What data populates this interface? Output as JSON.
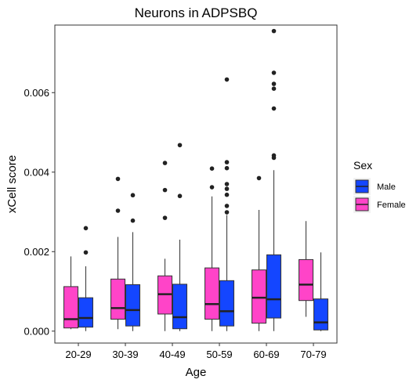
{
  "chart_data": {
    "type": "box",
    "title": "Neurons in ADPSBQ",
    "xlabel": "Age",
    "ylabel": "xCell score",
    "categories": [
      "20-29",
      "30-39",
      "40-49",
      "50-59",
      "60-69",
      "70-79"
    ],
    "y_ticks": [
      {
        "value": 0.0,
        "label": "0.000"
      },
      {
        "value": 0.002,
        "label": "0.002"
      },
      {
        "value": 0.004,
        "label": "0.004"
      },
      {
        "value": 0.006,
        "label": "0.006"
      }
    ],
    "ylim": [
      -0.0003,
      0.0077
    ],
    "grid": false,
    "legend": {
      "title": "Sex",
      "position": "right",
      "entries": [
        {
          "key": "Male",
          "label": "Male",
          "color": "#1446FF"
        },
        {
          "key": "Female",
          "label": "Female",
          "color": "#FF44C8"
        }
      ]
    },
    "series": [
      {
        "key": "Female",
        "color": "#FF44C8",
        "boxes": [
          {
            "whisker_low": 5e-05,
            "q1": 8e-05,
            "median": 0.0003,
            "q3": 0.00112,
            "whisker_high": 0.00188,
            "outliers": []
          },
          {
            "whisker_low": 5e-05,
            "q1": 0.0003,
            "median": 0.00058,
            "q3": 0.00131,
            "whisker_high": 0.00237,
            "outliers": [
              0.00303,
              0.00383
            ]
          },
          {
            "whisker_low": 0.0,
            "q1": 0.00043,
            "median": 0.00093,
            "q3": 0.00139,
            "whisker_high": 0.00182,
            "outliers": [
              0.00285,
              0.00355,
              0.00423
            ]
          },
          {
            "whisker_low": 0.0,
            "q1": 0.0003,
            "median": 0.00068,
            "q3": 0.00159,
            "whisker_high": 0.00339,
            "outliers": [
              0.00362,
              0.00409
            ]
          },
          {
            "whisker_low": 0.0,
            "q1": 0.0002,
            "median": 0.00084,
            "q3": 0.00154,
            "whisker_high": 0.00305,
            "outliers": [
              0.00385
            ]
          },
          {
            "whisker_low": 0.00036,
            "q1": 0.00077,
            "median": 0.00117,
            "q3": 0.0018,
            "whisker_high": 0.00277,
            "outliers": []
          }
        ]
      },
      {
        "key": "Male",
        "color": "#1446FF",
        "boxes": [
          {
            "whisker_low": 0.0,
            "q1": 0.0001,
            "median": 0.00033,
            "q3": 0.00084,
            "whisker_high": 0.00163,
            "outliers": [
              0.00198,
              0.00259
            ]
          },
          {
            "whisker_low": 0.0,
            "q1": 0.00013,
            "median": 0.00053,
            "q3": 0.00117,
            "whisker_high": 0.00249,
            "outliers": [
              0.00278,
              0.00342
            ]
          },
          {
            "whisker_low": 0.0,
            "q1": 6e-05,
            "median": 0.00035,
            "q3": 0.00118,
            "whisker_high": 0.0023,
            "outliers": [
              0.0034,
              0.00468
            ]
          },
          {
            "whisker_low": 0.0,
            "q1": 0.00013,
            "median": 0.0005,
            "q3": 0.00127,
            "whisker_high": 0.00292,
            "outliers": [
              0.00299,
              0.00315,
              0.00343,
              0.00358,
              0.0037,
              0.0041,
              0.00425,
              0.00633
            ]
          },
          {
            "whisker_low": 0.0,
            "q1": 0.00033,
            "median": 0.0008,
            "q3": 0.00192,
            "whisker_high": 0.00405,
            "outliers": [
              0.00436,
              0.00442,
              0.0056,
              0.0061,
              0.00622,
              0.0065,
              0.00755
            ]
          },
          {
            "whisker_low": 0.0,
            "q1": 3e-05,
            "median": 0.00022,
            "q3": 0.00081,
            "whisker_high": 0.00198,
            "outliers": []
          }
        ]
      }
    ]
  }
}
